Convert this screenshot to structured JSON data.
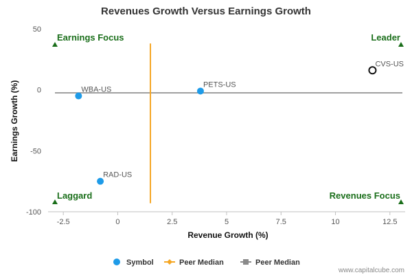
{
  "chart_data": {
    "type": "scatter",
    "title": "Revenues Growth Versus Earnings Growth",
    "xlabel": "Revenue Growth (%)",
    "ylabel": "Earnings Growth (%)",
    "xlim": [
      -3.2,
      13.2
    ],
    "ylim": [
      -100,
      50
    ],
    "x_ticks": [
      -2.5,
      0,
      2.5,
      5,
      7.5,
      10,
      12.5
    ],
    "x_tick_labels": [
      "-2.5",
      "0",
      "2.5",
      "5",
      "7.5",
      "10",
      "12.5"
    ],
    "y_ticks": [
      50,
      0,
      -50,
      -100
    ],
    "y_tick_labels": [
      "50",
      "0",
      "-50",
      "-100"
    ],
    "points": [
      {
        "label": "WBA-US",
        "x": -1.8,
        "y": -5,
        "style": "filled"
      },
      {
        "label": "PETS-US",
        "x": 3.8,
        "y": -1,
        "style": "filled"
      },
      {
        "label": "RAD-US",
        "x": -0.8,
        "y": -75,
        "style": "filled"
      },
      {
        "label": "CVS-US",
        "x": 11.7,
        "y": 16,
        "style": "hollow"
      }
    ],
    "peer_median_revenue_x": 1.5,
    "peer_median_revenue_yrange": [
      -93,
      38
    ],
    "peer_median_earnings_y": -2.5,
    "quadrants": {
      "top_left": "Earnings Focus",
      "top_right": "Leader",
      "bottom_left": "Laggard",
      "bottom_right": "Revenues Focus"
    },
    "legend": [
      {
        "name": "Symbol",
        "color": "#1e9be8"
      },
      {
        "name": "Peer Median",
        "color": "#f5a623"
      },
      {
        "name": "Peer Median",
        "color": "#8a8a8a"
      }
    ],
    "legend_position": "bottom",
    "colors": {
      "point": "#1e9be8",
      "revenue_median": "#f5a623",
      "earnings_median": "#8a8a8a",
      "quadrant": "#1a6e1a"
    }
  },
  "credit": "www.capitalcube.com"
}
